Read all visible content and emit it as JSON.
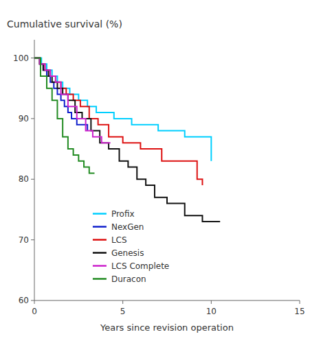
{
  "chart_data": {
    "type": "step",
    "ylabel": "Cumulative survival (%)",
    "xlabel": "Years since revision operation",
    "xlim": [
      0,
      15
    ],
    "ylim": [
      60,
      103
    ],
    "xticks": [
      0,
      5,
      10,
      15
    ],
    "yticks": [
      60,
      70,
      80,
      90,
      100
    ],
    "grid": false,
    "legend": "lower left",
    "series": [
      {
        "name": "Profix",
        "color": "#00CFFF",
        "x": [
          0,
          0.4,
          0.7,
          1.0,
          1.3,
          1.6,
          2.0,
          2.5,
          3.0,
          3.5,
          4.5,
          5.5,
          7.0,
          8.5,
          9.5,
          10.0
        ],
        "values": [
          100,
          99,
          98,
          97,
          96,
          95,
          94,
          93,
          92,
          91,
          90,
          89,
          88,
          87,
          87,
          83
        ]
      },
      {
        "name": "NexGen",
        "color": "#1020CC",
        "x": [
          0,
          0.3,
          0.5,
          0.7,
          0.9,
          1.1,
          1.3,
          1.5,
          1.7,
          1.9,
          2.1,
          2.4,
          2.7,
          3.0
        ],
        "values": [
          100,
          99,
          98,
          97,
          96,
          95,
          94,
          93,
          92,
          91,
          90,
          89,
          89,
          88
        ]
      },
      {
        "name": "LCS",
        "color": "#DD1111",
        "x": [
          0,
          0.3,
          0.6,
          0.9,
          1.2,
          1.5,
          1.8,
          2.2,
          2.6,
          3.1,
          3.6,
          4.2,
          5.0,
          6.0,
          7.2,
          8.3,
          9.2,
          9.5
        ],
        "values": [
          100,
          99,
          98,
          97,
          96,
          95,
          94,
          93,
          92,
          90,
          89,
          87,
          86,
          85,
          83,
          83,
          80,
          79
        ]
      },
      {
        "name": "Genesis",
        "color": "#111111",
        "x": [
          0,
          0.3,
          0.5,
          0.8,
          1.0,
          1.3,
          1.6,
          1.9,
          2.3,
          2.7,
          3.2,
          3.7,
          4.2,
          4.8,
          5.3,
          5.8,
          6.3,
          6.8,
          7.5,
          8.5,
          9.5,
          10.5
        ],
        "values": [
          100,
          99,
          98,
          97,
          96,
          95,
          94,
          93,
          91,
          90,
          88,
          86,
          85,
          83,
          82,
          80,
          79,
          77,
          76,
          74,
          73,
          73
        ]
      },
      {
        "name": "LCS Complete",
        "color": "#CC22CC",
        "x": [
          0,
          0.3,
          0.6,
          0.9,
          1.2,
          1.5,
          1.9,
          2.4,
          2.9,
          3.3,
          3.8,
          4.3
        ],
        "values": [
          100,
          99,
          98,
          97,
          96,
          94,
          92,
          90,
          88,
          87,
          86,
          86
        ]
      },
      {
        "name": "Duracon",
        "color": "#228B22",
        "x": [
          0,
          0.35,
          0.7,
          1.0,
          1.3,
          1.6,
          1.9,
          2.2,
          2.5,
          2.8,
          3.1,
          3.4
        ],
        "values": [
          100,
          97,
          95,
          93,
          90,
          87,
          85,
          84,
          83,
          82,
          81,
          81
        ]
      }
    ]
  }
}
